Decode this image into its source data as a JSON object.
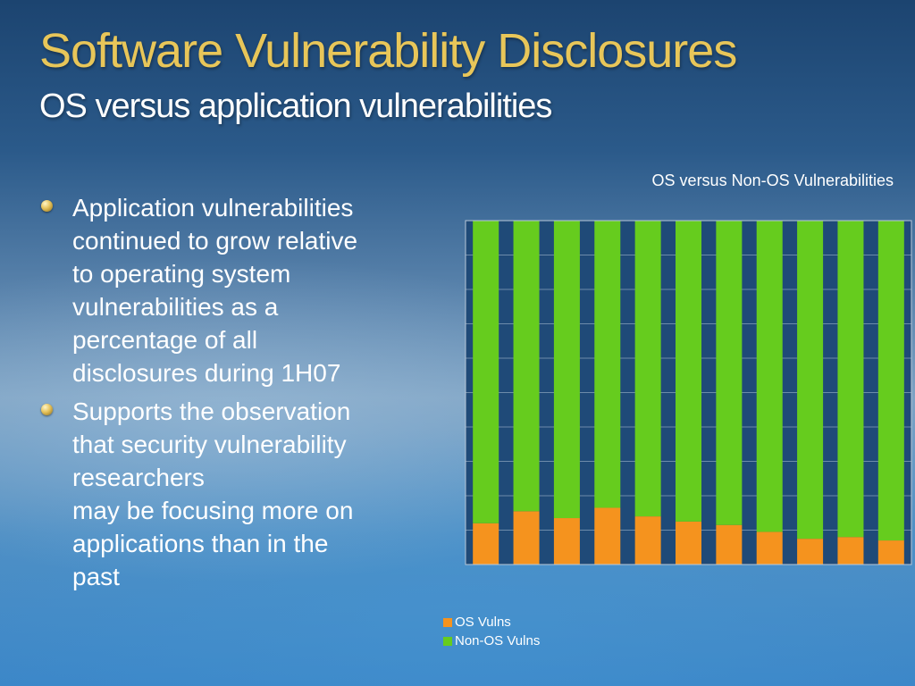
{
  "slide": {
    "title": "Software Vulnerability Disclosures",
    "subtitle": "OS versus application vulnerabilities"
  },
  "bullets": [
    {
      "lines": [
        "Application vulnerabilities",
        "continued to grow relative",
        "to operating system",
        "vulnerabilities as a",
        "percentage of all",
        "disclosures during 1H07"
      ]
    },
    {
      "lines": [
        "Supports the observation",
        "that security vulnerability",
        "researchers",
        "may be focusing more on",
        "applications than in the",
        "past"
      ]
    }
  ],
  "chart_data": {
    "type": "bar",
    "stacked": true,
    "percent_stacked": true,
    "title": "OS versus Non-OS Vulnerabilities",
    "xlabel": "",
    "ylabel": "",
    "ylim": [
      0,
      100
    ],
    "grid": true,
    "legend_position": "bottom",
    "series": [
      {
        "name": "OS Vulns",
        "color": "#f5931e",
        "values": [
          12,
          15.5,
          13.5,
          16.5,
          14,
          12.5,
          11.5,
          9.5,
          7.5,
          8,
          7
        ]
      },
      {
        "name": "Non-OS Vulns",
        "color": "#66cc1e",
        "values": [
          88,
          84.5,
          86.5,
          83.5,
          86,
          87.5,
          88.5,
          90.5,
          92.5,
          92,
          93
        ]
      }
    ],
    "plot_background": "#1f4a78"
  }
}
